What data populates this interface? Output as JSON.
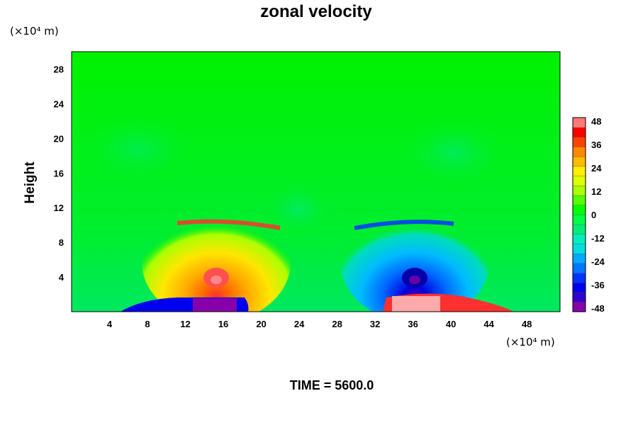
{
  "chart_data": {
    "type": "heatmap",
    "title": "zonal velocity",
    "ylabel": "Height",
    "x_unit": "(×10⁴ m)",
    "y_unit": "(×10⁴ m)",
    "xlim": [
      0,
      51.5
    ],
    "ylim": [
      0,
      30
    ],
    "x_ticks": [
      4,
      8,
      12,
      16,
      20,
      24,
      28,
      32,
      36,
      40,
      44,
      48
    ],
    "y_ticks": [
      4,
      8,
      12,
      16,
      20,
      24,
      28
    ],
    "colorbar": {
      "min": -48,
      "max": 48,
      "step": 6,
      "tick_labels": [
        48,
        36,
        24,
        12,
        0,
        -12,
        -24,
        -36,
        -48
      ],
      "colors_low_to_high": [
        "#8800aa",
        "#3300cc",
        "#0000ee",
        "#0033ff",
        "#0077ff",
        "#00aaff",
        "#00dddd",
        "#00eebb",
        "#00ee77",
        "#00ff44",
        "#00ff00",
        "#55ff00",
        "#aaff00",
        "#ddff00",
        "#ffee00",
        "#ffbb00",
        "#ff8800",
        "#ff4400",
        "#ff0000",
        "#ff7777"
      ]
    },
    "features": [
      {
        "label": "positive core",
        "x": 15.5,
        "y": 4.5,
        "value": 30
      },
      {
        "label": "negative core",
        "x": 37,
        "y": 4.2,
        "value": -36
      },
      {
        "label": "surface negative",
        "x": 15.5,
        "y": 0.8,
        "value": -48
      },
      {
        "label": "surface positive",
        "x": 36,
        "y": 0.8,
        "value": 48
      }
    ]
  },
  "time_label": "TIME = 5600.0"
}
